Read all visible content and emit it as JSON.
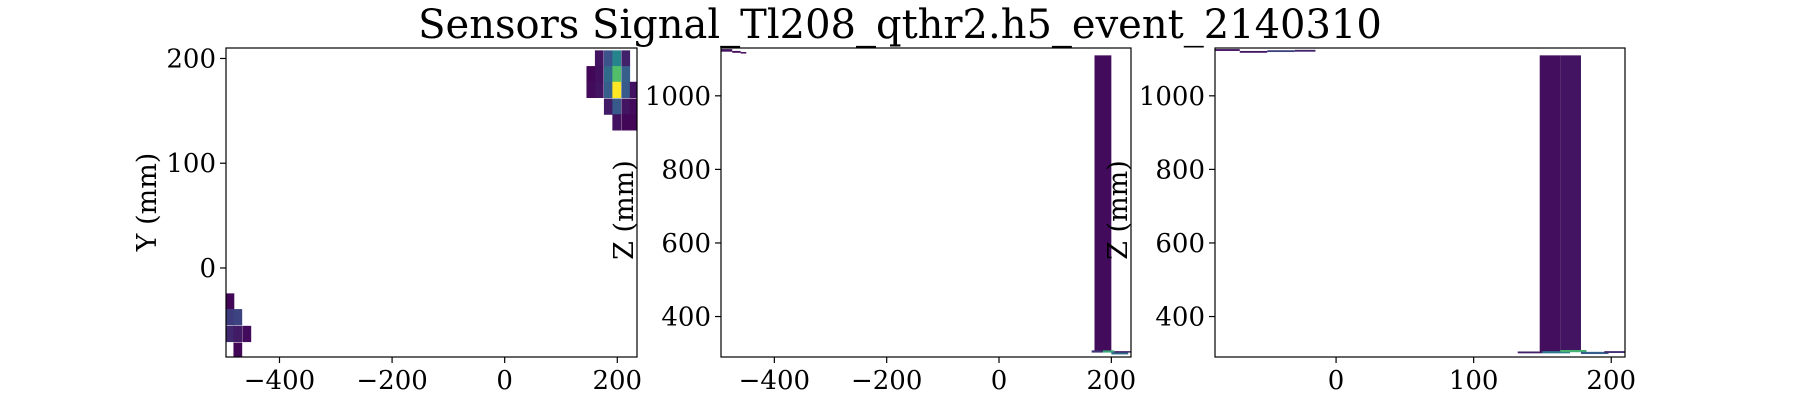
{
  "chart_data": {
    "title": "Sensors Signal_Tl208_qthr2.h5_event_2140310",
    "panels": [
      {
        "type": "heatmap",
        "xlabel": "",
        "ylabel": "Y (mm)",
        "xlim": [
          -495,
          235
        ],
        "ylim": [
          -85,
          210
        ],
        "xticks": [
          -400,
          -200,
          0,
          200
        ],
        "xtick_labels": [
          "−400",
          "−200",
          "0",
          "200"
        ],
        "yticks": [
          0,
          100,
          200
        ],
        "ytick_labels": [
          "0",
          "100",
          "200"
        ],
        "cell_size": 15.5,
        "cells": [
          {
            "x": -488,
            "y": -32,
            "v": 0.02
          },
          {
            "x": -488,
            "y": -47,
            "v": 0.18
          },
          {
            "x": -488,
            "y": -63,
            "v": 0.12
          },
          {
            "x": -474,
            "y": -47,
            "v": 0.2
          },
          {
            "x": -474,
            "y": -63,
            "v": 0.08
          },
          {
            "x": -474,
            "y": -79,
            "v": 0.02
          },
          {
            "x": -458,
            "y": -63,
            "v": 0.03
          },
          {
            "x": 168,
            "y": 200,
            "v": 0.06
          },
          {
            "x": 168,
            "y": 185,
            "v": 0.05
          },
          {
            "x": 168,
            "y": 170,
            "v": 0.06
          },
          {
            "x": 184,
            "y": 200,
            "v": 0.25
          },
          {
            "x": 184,
            "y": 185,
            "v": 0.35
          },
          {
            "x": 184,
            "y": 170,
            "v": 0.3
          },
          {
            "x": 184,
            "y": 154,
            "v": 0.08
          },
          {
            "x": 199,
            "y": 200,
            "v": 0.45
          },
          {
            "x": 199,
            "y": 185,
            "v": 0.7
          },
          {
            "x": 199,
            "y": 170,
            "v": 1.0
          },
          {
            "x": 199,
            "y": 154,
            "v": 0.28
          },
          {
            "x": 199,
            "y": 139,
            "v": 0.05
          },
          {
            "x": 215,
            "y": 200,
            "v": 0.1
          },
          {
            "x": 215,
            "y": 185,
            "v": 0.3
          },
          {
            "x": 215,
            "y": 170,
            "v": 0.28
          },
          {
            "x": 215,
            "y": 154,
            "v": 0.06
          },
          {
            "x": 215,
            "y": 139,
            "v": 0.02
          },
          {
            "x": 230,
            "y": 170,
            "v": 0.05
          },
          {
            "x": 230,
            "y": 154,
            "v": 0.03
          },
          {
            "x": 230,
            "y": 139,
            "v": 0.02
          },
          {
            "x": 153,
            "y": 185,
            "v": 0.02
          },
          {
            "x": 153,
            "y": 170,
            "v": 0.03
          }
        ]
      },
      {
        "type": "heatmap",
        "xlabel": "",
        "ylabel": "Z (mm)",
        "xlim": [
          -495,
          235
        ],
        "ylim": [
          290,
          1130
        ],
        "xticks": [
          -400,
          -200,
          0,
          200
        ],
        "xtick_labels": [
          "−400",
          "−200",
          "0",
          "200"
        ],
        "yticks": [
          400,
          600,
          800,
          1000
        ],
        "ytick_labels": [
          "400",
          "600",
          "800",
          "1000"
        ],
        "bars": [
          {
            "x0": 170,
            "x1": 200,
            "y0": 305,
            "y1": 1110,
            "v": 0.03
          },
          {
            "x0": -495,
            "x1": -475,
            "y0": 1120,
            "y1": 1127,
            "v": 0.05
          },
          {
            "x0": -475,
            "x1": -460,
            "y0": 1117,
            "y1": 1122,
            "v": 0.03
          },
          {
            "x0": -460,
            "x1": -450,
            "y0": 1117,
            "y1": 1119,
            "v": 0.02
          },
          {
            "x0": 165,
            "x1": 185,
            "y0": 302,
            "y1": 308,
            "v": 0.15
          },
          {
            "x0": 185,
            "x1": 205,
            "y0": 302,
            "y1": 308,
            "v": 0.6
          },
          {
            "x0": 200,
            "x1": 230,
            "y0": 297,
            "y1": 303,
            "v": 0.35
          },
          {
            "x0": 205,
            "x1": 235,
            "y0": 302,
            "y1": 306,
            "v": 0.1
          }
        ]
      },
      {
        "type": "heatmap",
        "xlabel": "",
        "ylabel": "Z (mm)",
        "xlim": [
          -88,
          210
        ],
        "ylim": [
          290,
          1130
        ],
        "xticks": [
          0,
          100,
          200
        ],
        "xtick_labels": [
          "0",
          "100",
          "200"
        ],
        "yticks": [
          400,
          600,
          800,
          1000
        ],
        "ytick_labels": [
          "400",
          "600",
          "800",
          "1000"
        ],
        "bars": [
          {
            "x0": 148,
            "x1": 163,
            "y0": 305,
            "y1": 1110,
            "v": 0.04
          },
          {
            "x0": 163,
            "x1": 178,
            "y0": 305,
            "y1": 1110,
            "v": 0.06
          },
          {
            "x0": -88,
            "x1": -70,
            "y0": 1122,
            "y1": 1127,
            "v": 0.05
          },
          {
            "x0": -70,
            "x1": -50,
            "y0": 1117,
            "y1": 1122,
            "v": 0.06
          },
          {
            "x0": -50,
            "x1": -30,
            "y0": 1119,
            "y1": 1124,
            "v": 0.2
          },
          {
            "x0": -30,
            "x1": -15,
            "y0": 1120,
            "y1": 1125,
            "v": 0.1
          },
          {
            "x0": 132,
            "x1": 150,
            "y0": 300,
            "y1": 305,
            "v": 0.1
          },
          {
            "x0": 150,
            "x1": 170,
            "y0": 300,
            "y1": 306,
            "v": 0.4
          },
          {
            "x0": 163,
            "x1": 182,
            "y0": 303,
            "y1": 309,
            "v": 0.65
          },
          {
            "x0": 178,
            "x1": 198,
            "y0": 298,
            "y1": 304,
            "v": 0.3
          },
          {
            "x0": 195,
            "x1": 210,
            "y0": 301,
            "y1": 306,
            "v": 0.12
          }
        ]
      }
    ]
  }
}
